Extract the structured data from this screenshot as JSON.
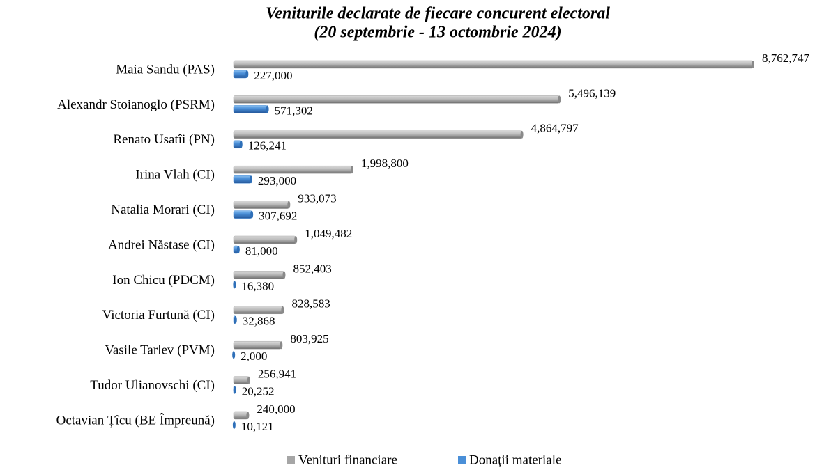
{
  "chart_data": {
    "type": "bar",
    "orientation": "horizontal",
    "title": [
      "Veniturile declarate de fiecare concurent electoral",
      "(20 septembrie - 13 octombrie 2024)"
    ],
    "categories": [
      "Maia Sandu (PAS)",
      "Alexandr Stoianoglo (PSRM)",
      "Renato Usatîi (PN)",
      "Irina Vlah (CI)",
      "Natalia Morari (CI)",
      "Andrei Năstase (CI)",
      "Ion Chicu (PDCM)",
      "Victoria Furtună (CI)",
      "Vasile Tarlev (PVM)",
      "Tudor Ulianovschi (CI)",
      "Octavian Țîcu (BE Împreună)"
    ],
    "series": [
      {
        "name": "Venituri financiare",
        "color": "#a6a6a6",
        "values": [
          8762747,
          5496139,
          4864797,
          1998800,
          933073,
          1049482,
          852403,
          828583,
          803925,
          256941,
          240000
        ],
        "value_labels": [
          "8,762,747",
          "5,496,139",
          "4,864,797",
          "1,998,800",
          "933,073",
          "1,049,482",
          "852,403",
          "828,583",
          "803,925",
          "256,941",
          "240,000"
        ]
      },
      {
        "name": "Donații materiale",
        "color": "#4a8fd8",
        "values": [
          227000,
          571302,
          126241,
          293000,
          307692,
          81000,
          16380,
          32868,
          2000,
          20252,
          10121
        ],
        "value_labels": [
          "227,000",
          "571,302",
          "126,241",
          "293,000",
          "307,692",
          "81,000",
          "16,380",
          "32,868",
          "2,000",
          "20,252",
          "10,121"
        ]
      }
    ],
    "legend": "bottom"
  }
}
